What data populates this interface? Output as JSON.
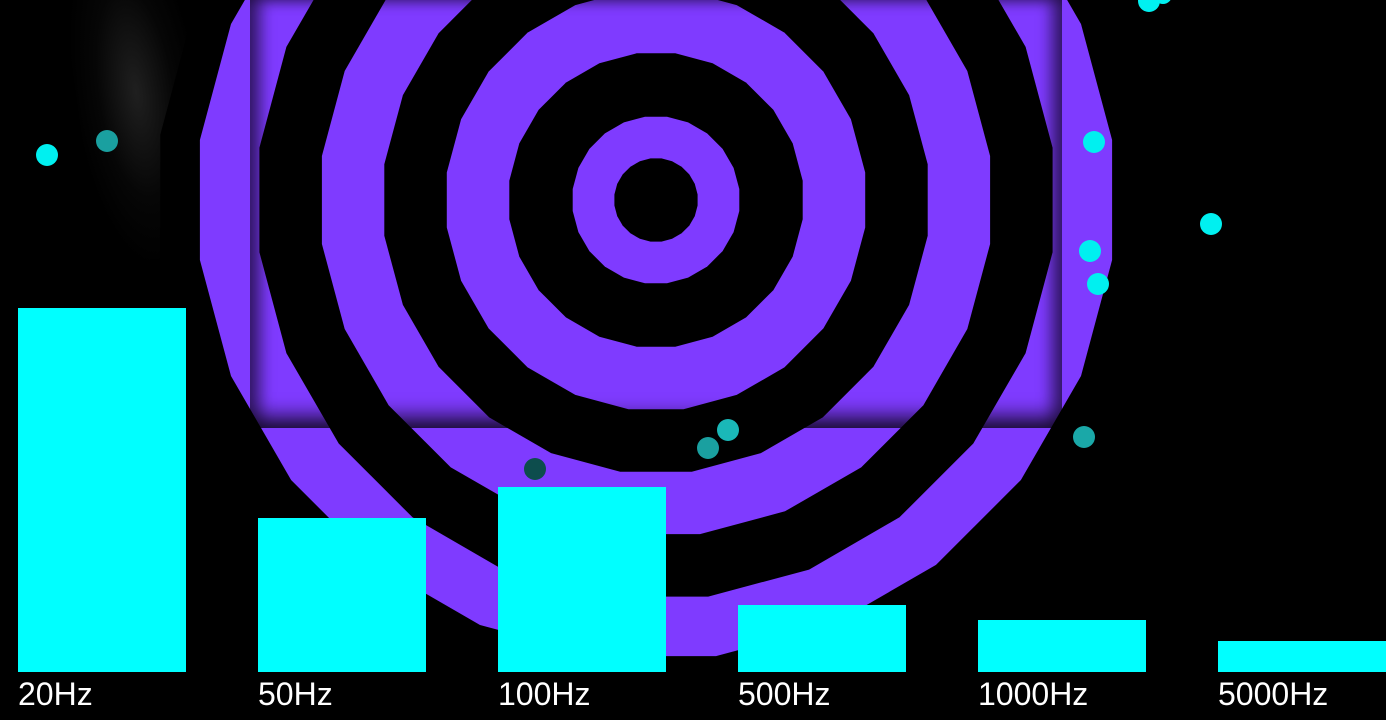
{
  "colors": {
    "background": "#000000",
    "ring": "#7f3bff",
    "bar": "#00ffff",
    "particle": "#00f0f0",
    "label": "#ffffff"
  },
  "visualizer": {
    "bands": [
      {
        "label": "20Hz",
        "level": 0.91
      },
      {
        "label": "50Hz",
        "level": 0.385
      },
      {
        "label": "100Hz",
        "level": 0.4625
      },
      {
        "label": "500Hz",
        "level": 0.1675
      },
      {
        "label": "1000Hz",
        "level": 0.13
      },
      {
        "label": "5000Hz",
        "level": 0.0775
      }
    ]
  }
}
